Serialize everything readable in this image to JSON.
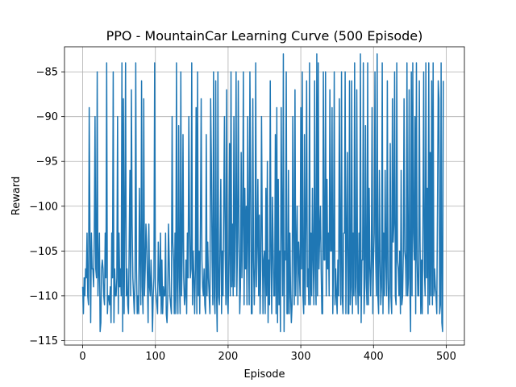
{
  "chart_data": {
    "type": "line",
    "title": "PPO - MountainCar Learning Curve (500 Episode)",
    "xlabel": "Episode",
    "ylabel": "Reward",
    "xlim": [
      -25,
      525
    ],
    "ylim": [
      -115.5,
      -82.2
    ],
    "xticks": [
      0,
      100,
      200,
      300,
      400,
      500
    ],
    "yticks": [
      -115,
      -110,
      -105,
      -100,
      -95,
      -90,
      -85
    ],
    "grid": true,
    "color": "#1f77b4",
    "series": [
      {
        "x_start": 0,
        "x_step": 1,
        "values": [
          -109,
          -112,
          -108,
          -110,
          -107,
          -108,
          -103,
          -110,
          -111,
          -89,
          -103,
          -113,
          -103,
          -107,
          -107,
          -109,
          -103,
          -90,
          -107,
          -108,
          -85,
          -110,
          -107,
          -103,
          -114,
          -113,
          -107,
          -106,
          -107,
          -110,
          -111,
          -103,
          -108,
          -84,
          -112,
          -110,
          -110,
          -111,
          -109,
          -113,
          -103,
          -108,
          -85,
          -113,
          -107,
          -110,
          -110,
          -108,
          -90,
          -112,
          -103,
          -109,
          -107,
          -110,
          -84,
          -114,
          -88,
          -112,
          -101,
          -84,
          -110,
          -107,
          -111,
          -112,
          -104,
          -96,
          -110,
          -87,
          -102,
          -108,
          -110,
          -112,
          -108,
          -84,
          -107,
          -112,
          -110,
          -112,
          -98,
          -106,
          -111,
          -86,
          -109,
          -112,
          -88,
          -110,
          -107,
          -102,
          -104,
          -108,
          -113,
          -102,
          -109,
          -110,
          -106,
          -109,
          -114,
          -110,
          -108,
          -84,
          -109,
          -110,
          -111,
          -112,
          -104,
          -108,
          -110,
          -103,
          -112,
          -106,
          -112,
          -109,
          -110,
          -110,
          -103,
          -112,
          -113,
          -110,
          -102,
          -106,
          -110,
          -111,
          -112,
          -90,
          -104,
          -106,
          -112,
          -103,
          -112,
          -84,
          -109,
          -112,
          -91,
          -108,
          -112,
          -85,
          -110,
          -105,
          -92,
          -108,
          -111,
          -110,
          -106,
          -112,
          -103,
          -108,
          -90,
          -102,
          -108,
          -107,
          -84,
          -111,
          -105,
          -108,
          -112,
          -107,
          -89,
          -112,
          -85,
          -110,
          -105,
          -112,
          -102,
          -88,
          -106,
          -109,
          -110,
          -107,
          -111,
          -112,
          -92,
          -110,
          -104,
          -108,
          -110,
          -112,
          -88,
          -95,
          -106,
          -111,
          -85,
          -110,
          -112,
          -86,
          -109,
          -114,
          -85,
          -110,
          -111,
          -104,
          -97,
          -112,
          -105,
          -110,
          -100,
          -90,
          -105,
          -111,
          -87,
          -110,
          -112,
          -106,
          -93,
          -110,
          -85,
          -109,
          -102,
          -110,
          -90,
          -109,
          -102,
          -85,
          -110,
          -104,
          -86,
          -103,
          -112,
          -109,
          -94,
          -108,
          -102,
          -85,
          -111,
          -98,
          -107,
          -100,
          -111,
          -90,
          -104,
          -111,
          -85,
          -96,
          -112,
          -112,
          -88,
          -106,
          -111,
          -107,
          -84,
          -109,
          -104,
          -97,
          -110,
          -101,
          -112,
          -107,
          -90,
          -103,
          -112,
          -106,
          -105,
          -112,
          -98,
          -110,
          -95,
          -113,
          -106,
          -111,
          -86,
          -106,
          -112,
          -99,
          -105,
          -110,
          -110,
          -92,
          -112,
          -89,
          -113,
          -97,
          -111,
          -105,
          -114,
          -89,
          -102,
          -110,
          -83,
          -114,
          -105,
          -106,
          -85,
          -112,
          -112,
          -96,
          -112,
          -103,
          -110,
          -113,
          -111,
          -90,
          -103,
          -111,
          -87,
          -110,
          -105,
          -100,
          -111,
          -104,
          -107,
          -110,
          -89,
          -107,
          -85,
          -110,
          -112,
          -92,
          -111,
          -102,
          -86,
          -109,
          -107,
          -111,
          -84,
          -111,
          -103,
          -110,
          -98,
          -106,
          -111,
          -86,
          -107,
          -111,
          -83,
          -110,
          -84,
          -107,
          -103,
          -100,
          -107,
          -112,
          -112,
          -85,
          -106,
          -106,
          -85,
          -110,
          -97,
          -107,
          -103,
          -110,
          -87,
          -105,
          -105,
          -89,
          -112,
          -106,
          -85,
          -111,
          -107,
          -110,
          -112,
          -106,
          -110,
          -88,
          -105,
          -111,
          -85,
          -110,
          -112,
          -103,
          -103,
          -85,
          -112,
          -104,
          -94,
          -112,
          -112,
          -86,
          -111,
          -109,
          -86,
          -112,
          -103,
          -110,
          -84,
          -109,
          -111,
          -87,
          -108,
          -112,
          -103,
          -110,
          -83,
          -113,
          -106,
          -106,
          -84,
          -112,
          -109,
          -91,
          -108,
          -111,
          -84,
          -111,
          -98,
          -107,
          -110,
          -106,
          -89,
          -112,
          -106,
          -103,
          -85,
          -106,
          -110,
          -83,
          -110,
          -112,
          -96,
          -106,
          -111,
          -109,
          -84,
          -112,
          -103,
          -110,
          -96,
          -106,
          -110,
          -86,
          -108,
          -112,
          -109,
          -93,
          -110,
          -112,
          -88,
          -104,
          -102,
          -85,
          -110,
          -111,
          -84,
          -106,
          -107,
          -110,
          -105,
          -112,
          -96,
          -111,
          -110,
          -105,
          -88,
          -105,
          -106,
          -110,
          -84,
          -110,
          -108,
          -87,
          -109,
          -114,
          -85,
          -110,
          -84,
          -103,
          -106,
          -90,
          -112,
          -84,
          -106,
          -110,
          -110,
          -86,
          -104,
          -112,
          -106,
          -112,
          -102,
          -85,
          -107,
          -110,
          -84,
          -108,
          -98,
          -112,
          -84,
          -111,
          -94,
          -110,
          -86,
          -111,
          -84,
          -110,
          -107,
          -109,
          -110,
          -112,
          -100,
          -86,
          -88,
          -112,
          -111,
          -84,
          -113,
          -114,
          -86
        ]
      }
    ]
  }
}
